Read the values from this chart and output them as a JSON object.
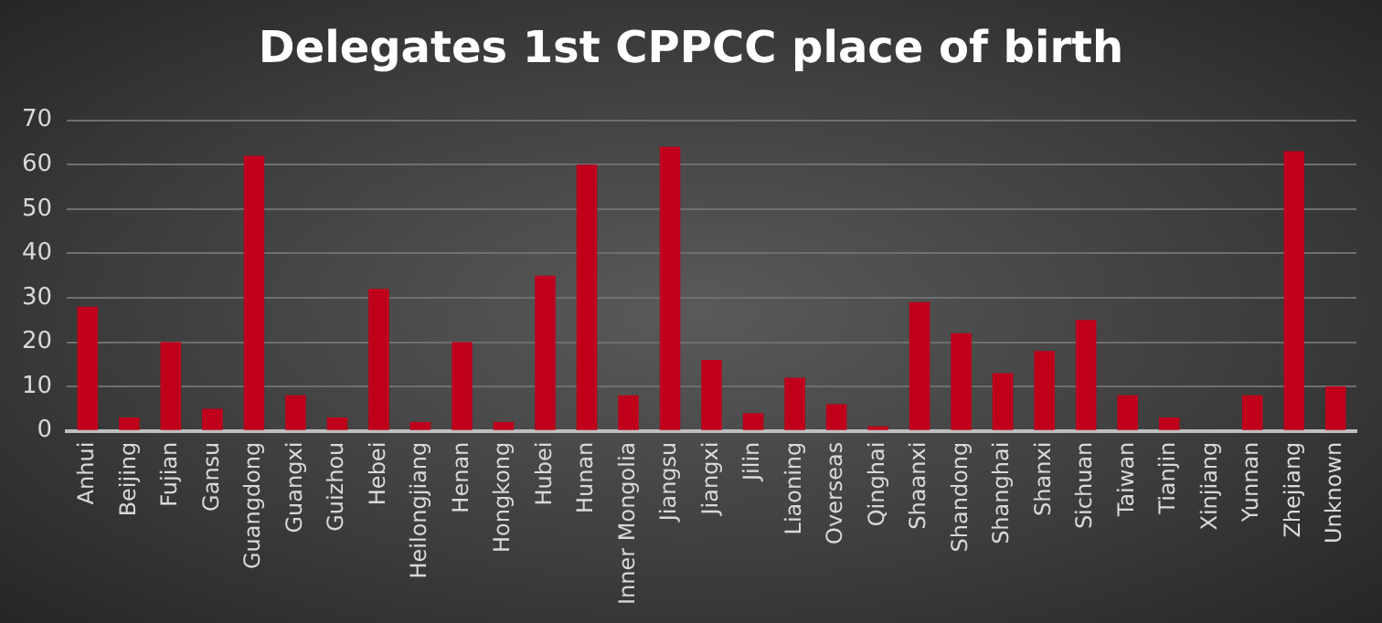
{
  "chart_data": {
    "type": "bar",
    "title": "Delegates 1st CPPCC place of birth",
    "categories": [
      "Anhui",
      "Beijing",
      "Fujian",
      "Gansu",
      "Guangdong",
      "Guangxi",
      "Guizhou",
      "Hebei",
      "Heilongjiang",
      "Henan",
      "Hongkong",
      "Hubei",
      "Hunan",
      "Inner Mongolia",
      "Jiangsu",
      "Jiangxi",
      "Jilin",
      "Liaoning",
      "Overseas",
      "Qinghai",
      "Shaanxi",
      "Shandong",
      "Shanghai",
      "Shanxi",
      "Sichuan",
      "Taiwan",
      "Tianjin",
      "Xinjiang",
      "Yunnan",
      "Zhejiang",
      "Unknown"
    ],
    "values": [
      28,
      3,
      20,
      5,
      62,
      8,
      3,
      32,
      2,
      20,
      2,
      35,
      60,
      8,
      64,
      16,
      4,
      12,
      6,
      1,
      29,
      22,
      13,
      18,
      25,
      8,
      3,
      0,
      8,
      63,
      10
    ],
    "color": "#c0001b",
    "ylim": [
      0,
      70
    ],
    "yticks": [
      0,
      10,
      20,
      30,
      40,
      50,
      60,
      70
    ],
    "grid": "y",
    "legend": false
  }
}
